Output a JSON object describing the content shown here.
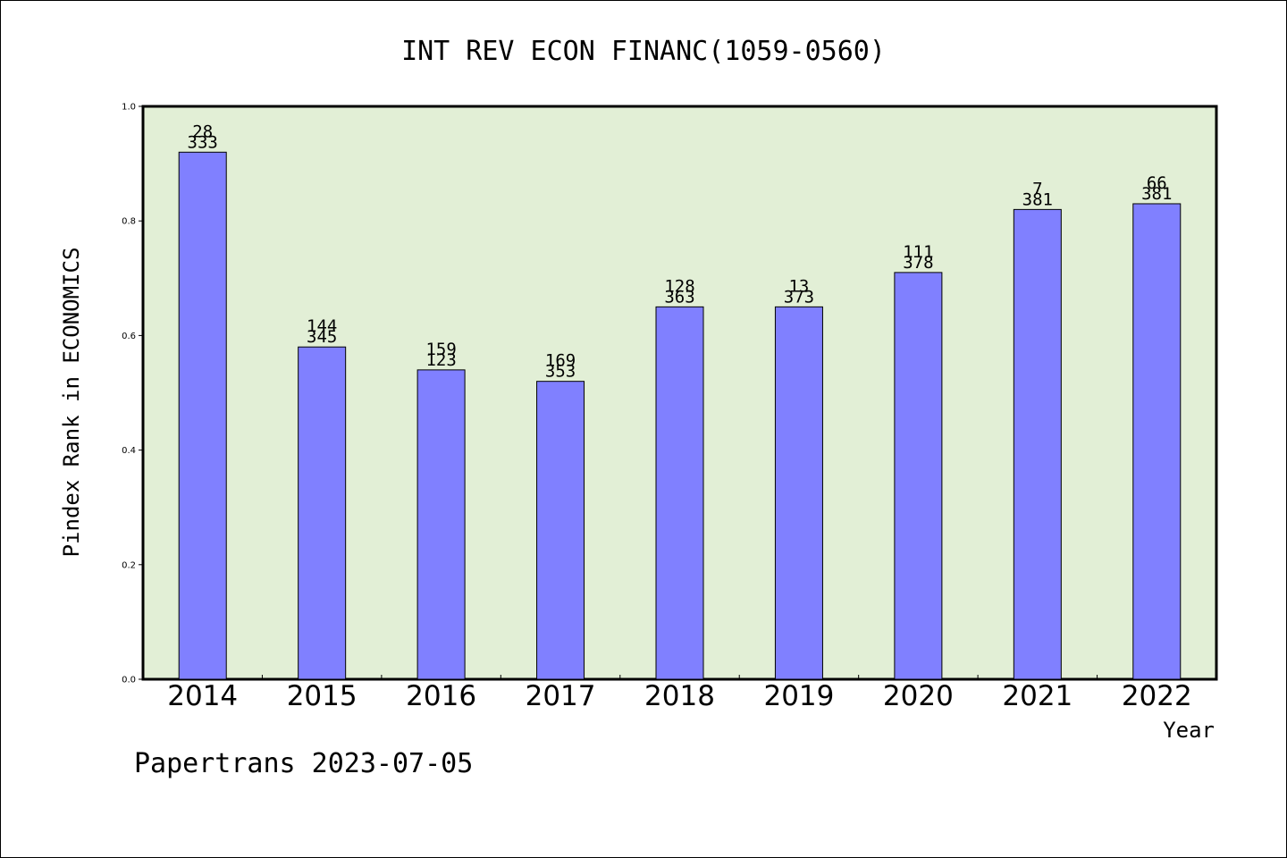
{
  "chart_data": {
    "type": "bar",
    "title": "INT REV ECON FINANC(1059-0560)",
    "xlabel": "Year",
    "ylabel": "Pindex Rank in ECONOMICS",
    "ylim": [
      0,
      1.0
    ],
    "yticks": [
      "0.0",
      "0.2",
      "0.4",
      "0.6",
      "0.8",
      "1.0"
    ],
    "categories": [
      "2014",
      "2015",
      "2016",
      "2017",
      "2018",
      "2019",
      "2020",
      "2021",
      "2022"
    ],
    "values": [
      0.92,
      0.58,
      0.54,
      0.52,
      0.65,
      0.65,
      0.71,
      0.82,
      0.83
    ],
    "labels_top": [
      "28",
      "144",
      "159",
      "169",
      "128",
      "13",
      "111",
      "7",
      "66"
    ],
    "labels_bottom": [
      "333",
      "345",
      "123",
      "353",
      "363",
      "373",
      "378",
      "381",
      "381"
    ],
    "colors": {
      "plot_bg": "#e2efd6",
      "bar": "#8080ff"
    },
    "grid": false
  },
  "footer": {
    "text": "Papertrans 2023-07-05"
  }
}
